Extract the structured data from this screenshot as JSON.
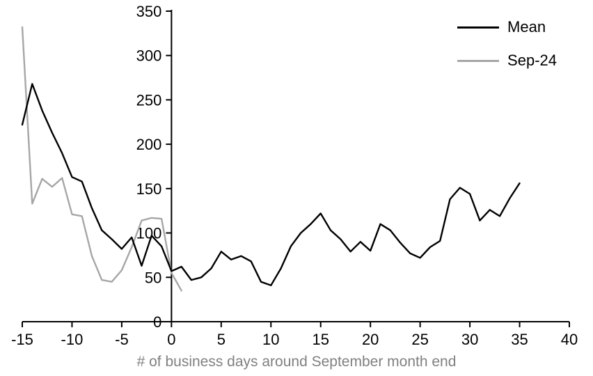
{
  "chart_data": {
    "type": "line",
    "title": "",
    "xlabel": "# of business days around September month end",
    "ylabel": "",
    "xlim": [
      -15,
      40
    ],
    "ylim": [
      0,
      350
    ],
    "x_ticks": [
      -15,
      -10,
      -5,
      0,
      5,
      10,
      15,
      20,
      25,
      30,
      35,
      40
    ],
    "y_ticks": [
      0,
      50,
      100,
      150,
      200,
      250,
      300,
      350
    ],
    "grid": false,
    "legend_position": "top-right",
    "axis_color": "#000000",
    "tick_label_color": "#000000",
    "xlabel_color": "#808080",
    "series": [
      {
        "name": "Mean",
        "color": "#000000",
        "x": [
          -15,
          -14,
          -13,
          -12,
          -11,
          -10,
          -9,
          -8,
          -7,
          -6,
          -5,
          -4,
          -3,
          -2,
          -1,
          0,
          1,
          2,
          3,
          4,
          5,
          6,
          7,
          8,
          9,
          10,
          11,
          12,
          13,
          14,
          15,
          16,
          17,
          18,
          19,
          20,
          21,
          22,
          23,
          24,
          25,
          26,
          27,
          28,
          29,
          30,
          31,
          32,
          33,
          34,
          35
        ],
        "values": [
          222,
          268,
          238,
          213,
          190,
          163,
          158,
          128,
          103,
          93,
          82,
          95,
          63,
          97,
          85,
          57,
          62,
          47,
          50,
          60,
          79,
          70,
          74,
          68,
          45,
          41,
          60,
          85,
          100,
          110,
          122,
          103,
          93,
          79,
          90,
          80,
          110,
          103,
          89,
          77,
          72,
          84,
          91,
          138,
          151,
          144,
          114,
          126,
          119,
          139,
          156
        ]
      },
      {
        "name": "Sep-24",
        "color": "#a6a6a6",
        "x": [
          -15,
          -14,
          -13,
          -12,
          -11,
          -10,
          -9,
          -8,
          -7,
          -6,
          -5,
          -4,
          -3,
          -2,
          -1,
          0,
          1
        ],
        "values": [
          332,
          133,
          161,
          152,
          162,
          121,
          119,
          74,
          47,
          45,
          58,
          84,
          114,
          117,
          116,
          55,
          35
        ]
      }
    ]
  }
}
